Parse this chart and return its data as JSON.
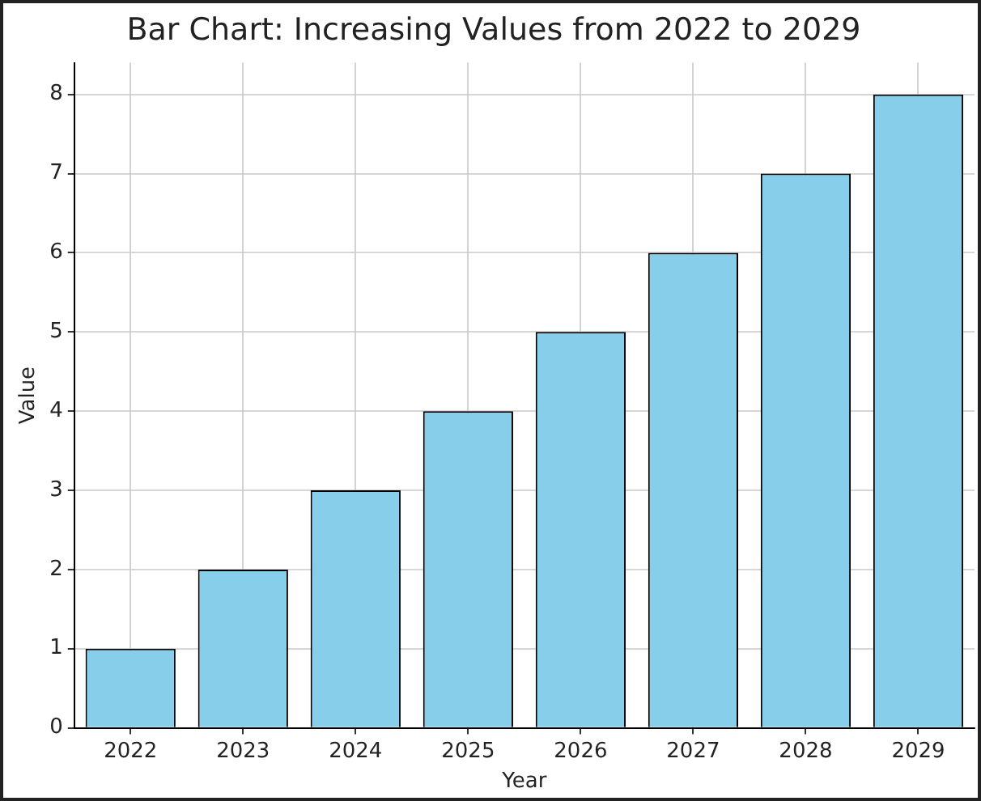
{
  "chart_data": {
    "type": "bar",
    "title": "Bar Chart: Increasing Values from 2022 to 2029",
    "xlabel": "Year",
    "ylabel": "Value",
    "categories": [
      "2022",
      "2023",
      "2024",
      "2025",
      "2026",
      "2027",
      "2028",
      "2029"
    ],
    "values": [
      1,
      2,
      3,
      4,
      5,
      6,
      7,
      8
    ],
    "color": "#87ceeb",
    "ylim": [
      0,
      8.4
    ],
    "yticks": [
      0,
      1,
      2,
      3,
      4,
      5,
      6,
      7,
      8
    ],
    "grid": true
  }
}
